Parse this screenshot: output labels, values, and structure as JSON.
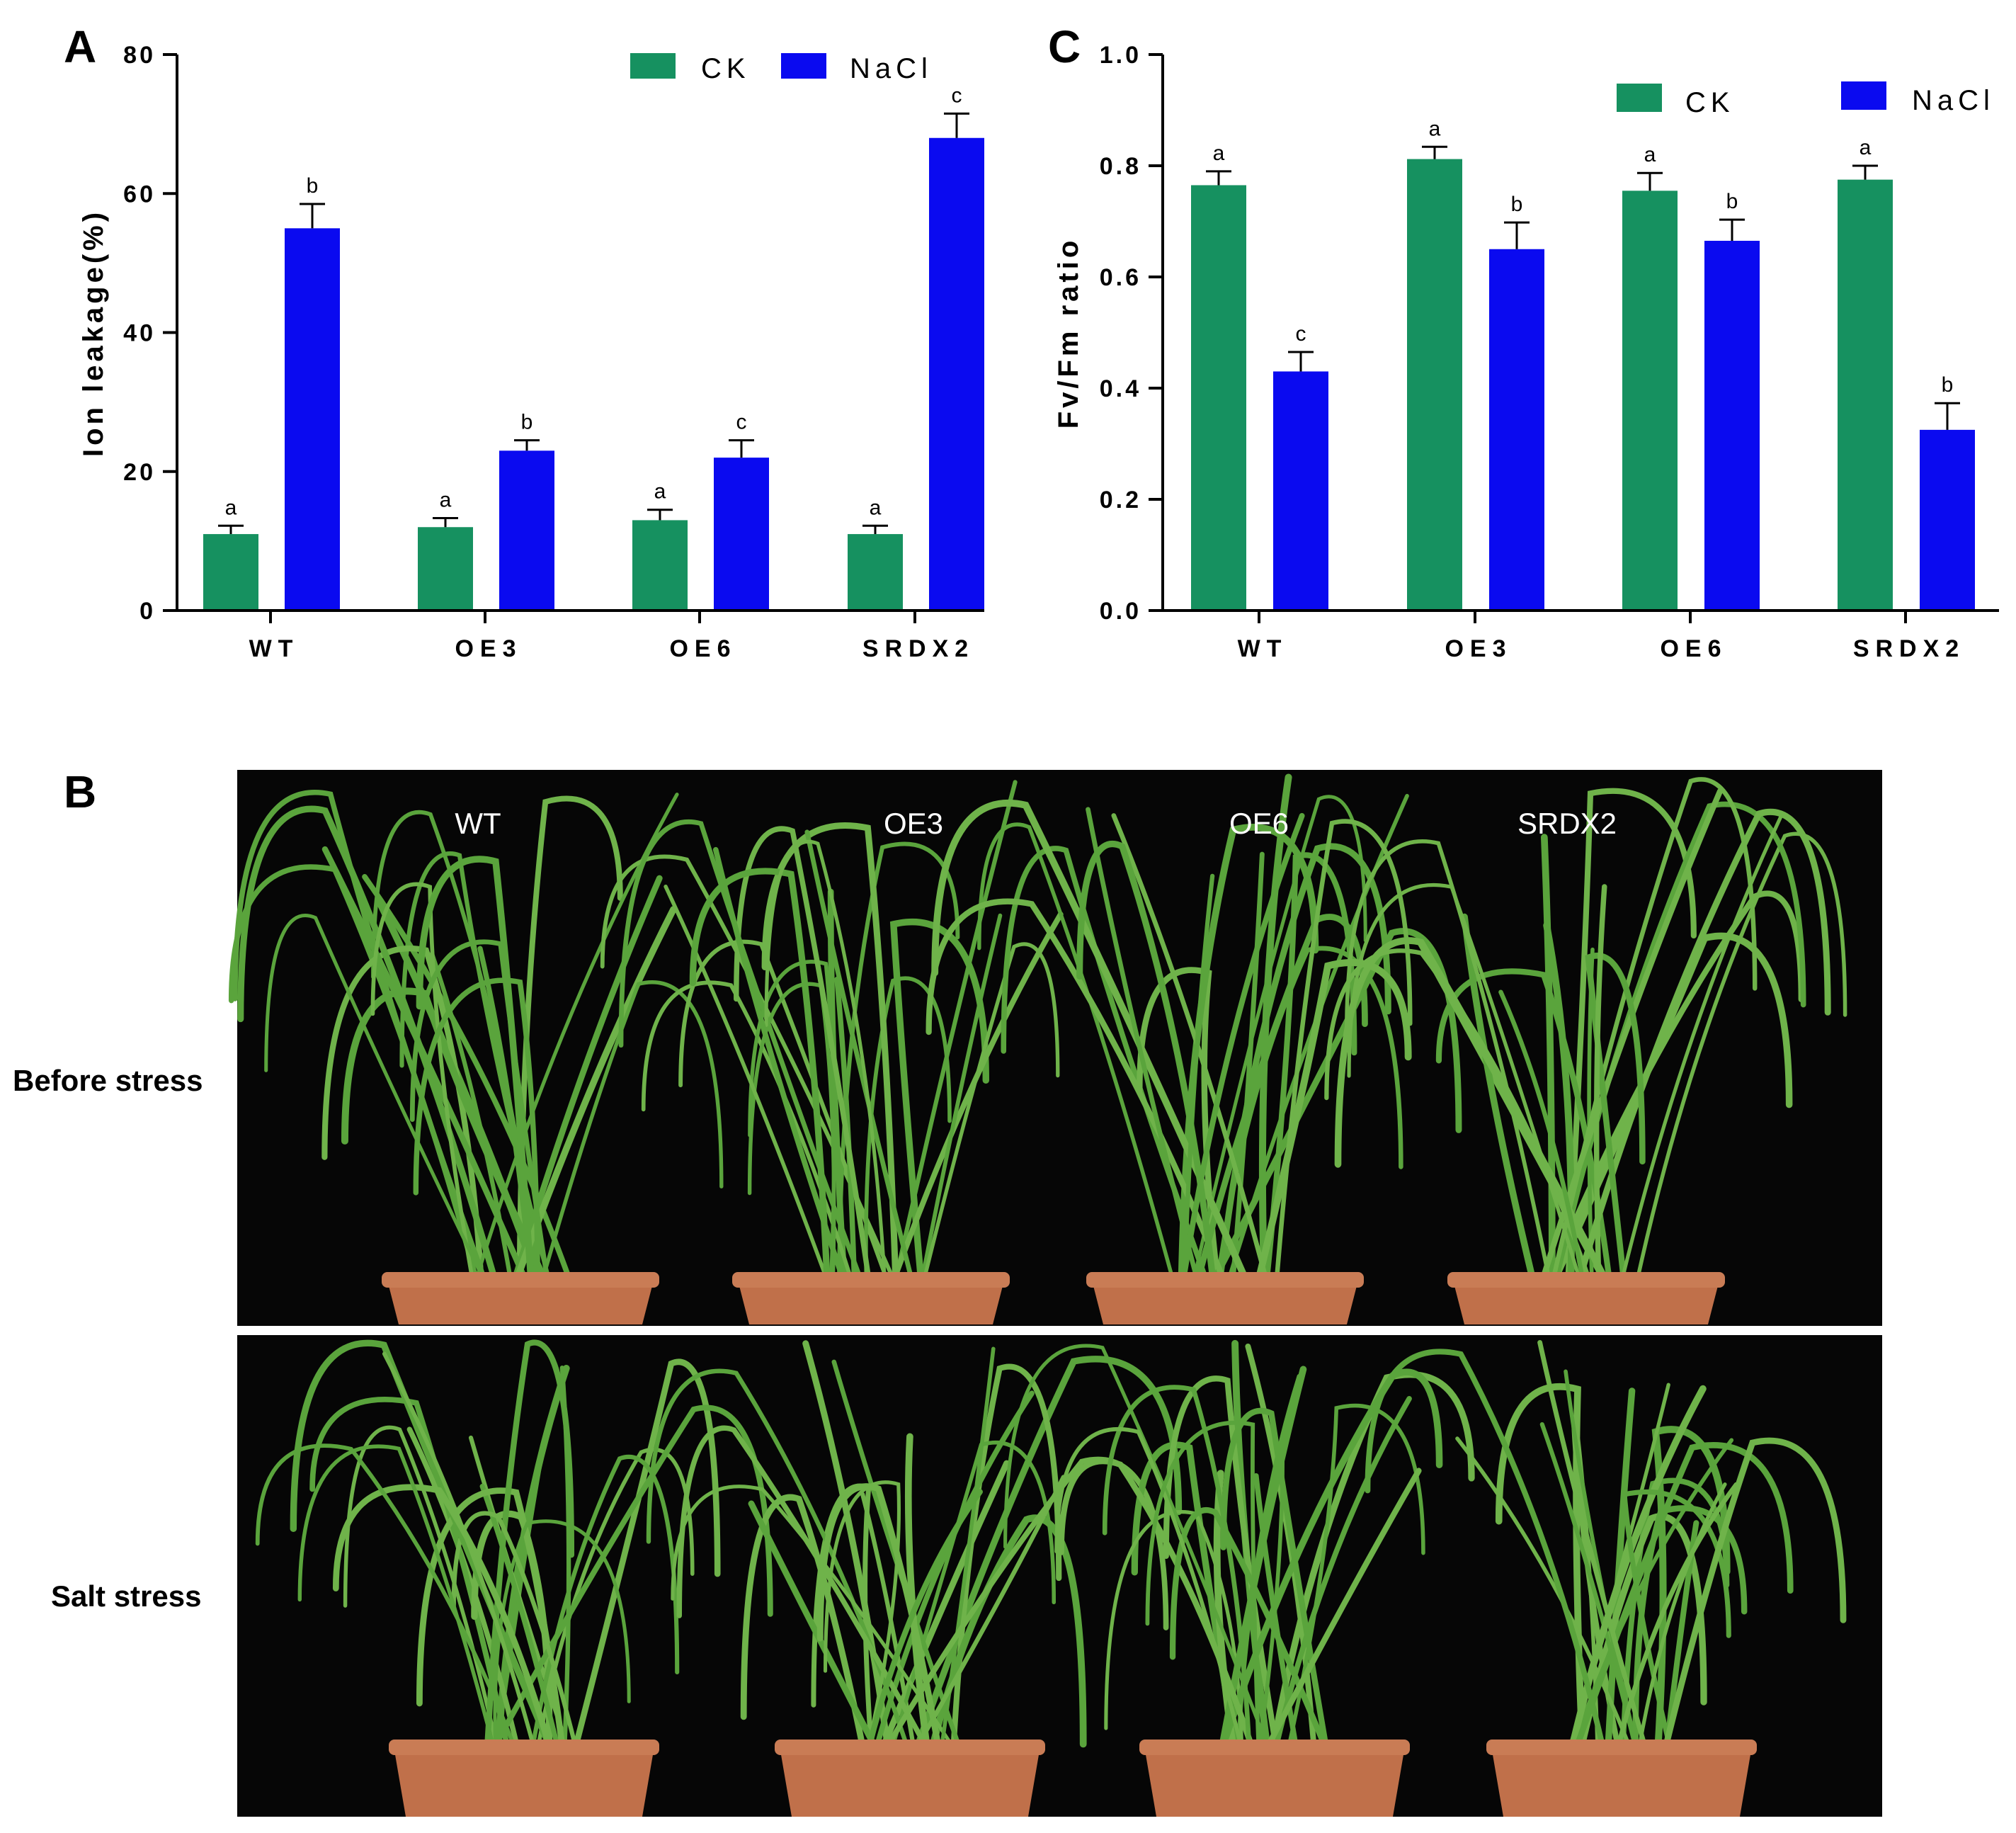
{
  "colors": {
    "ck": "#169160",
    "nacl": "#0a0af0",
    "photo_bg": "#060606",
    "leaf": "#6fb34a",
    "pot": "#c0704a"
  },
  "panels": {
    "a": "A",
    "b": "B",
    "c": "C"
  },
  "chart_data": [
    {
      "type": "bar",
      "panel": "A",
      "title": "",
      "xlabel": "",
      "ylabel": "Ion leakage(%)",
      "ylim": [
        0,
        80
      ],
      "yticks": [
        0,
        20,
        40,
        60,
        80
      ],
      "categories": [
        "WT",
        "OE3",
        "OE6",
        "SRDX2"
      ],
      "series": [
        {
          "name": "CK",
          "values": [
            11,
            12,
            13,
            11
          ],
          "errors": [
            1.2,
            1.3,
            1.5,
            1.2
          ],
          "labels": [
            "a",
            "a",
            "a",
            "a"
          ]
        },
        {
          "name": "NaCl",
          "values": [
            55,
            23,
            22,
            68
          ],
          "errors": [
            3.5,
            1.5,
            2.5,
            3.5
          ],
          "labels": [
            "b",
            "b",
            "c",
            "c"
          ]
        }
      ],
      "legend_position": "top-right"
    },
    {
      "type": "bar",
      "panel": "C",
      "title": "",
      "xlabel": "",
      "ylabel": "Fv/Fm ratio",
      "ylim": [
        0,
        1.0
      ],
      "yticks": [
        0.0,
        0.2,
        0.4,
        0.6,
        0.8,
        1.0
      ],
      "categories": [
        "WT",
        "OE3",
        "OE6",
        "SRDX2"
      ],
      "series": [
        {
          "name": "CK",
          "values": [
            0.765,
            0.812,
            0.755,
            0.775
          ],
          "errors": [
            0.025,
            0.022,
            0.032,
            0.025
          ],
          "labels": [
            "a",
            "a",
            "a",
            "a"
          ]
        },
        {
          "name": "NaCl",
          "values": [
            0.43,
            0.65,
            0.665,
            0.325
          ],
          "errors": [
            0.035,
            0.048,
            0.038,
            0.048
          ],
          "labels": [
            "c",
            "b",
            "b",
            "b"
          ]
        }
      ],
      "legend_position": "top-right"
    }
  ],
  "photo": {
    "genotypes": [
      "WT",
      "OE3",
      "OE6",
      "SRDX2"
    ],
    "rows": [
      "Before stress",
      "Salt stress"
    ]
  }
}
